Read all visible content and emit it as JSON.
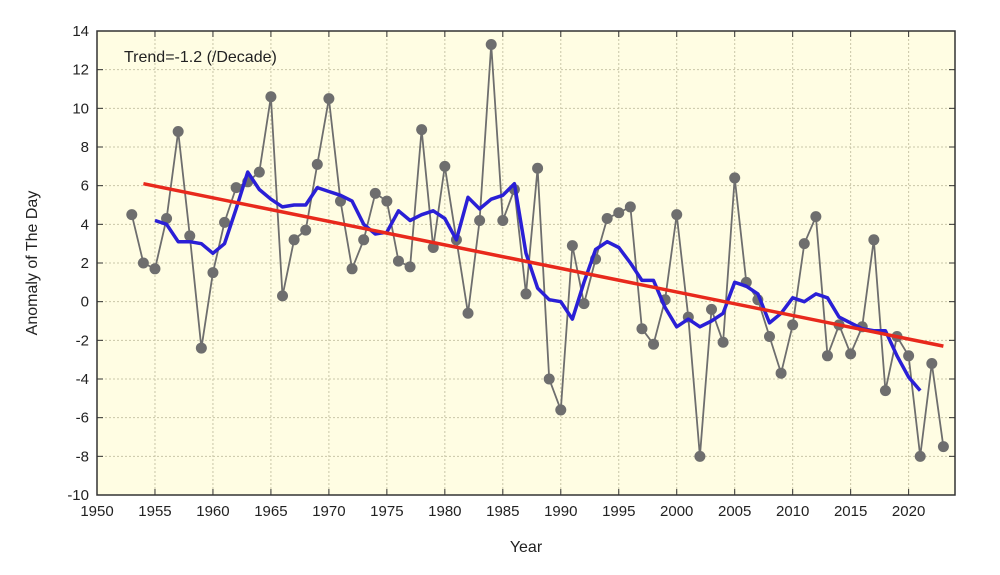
{
  "chart_data": {
    "type": "line",
    "title": "",
    "annotation": "Trend=-1.2 (/Decade)",
    "xlabel": "Year",
    "ylabel": "Anomaly of The Day",
    "xlim": [
      1950,
      2024
    ],
    "ylim": [
      -10,
      14
    ],
    "xticks": [
      1950,
      1955,
      1960,
      1965,
      1970,
      1975,
      1980,
      1985,
      1990,
      1995,
      2000,
      2005,
      2010,
      2015,
      2020
    ],
    "yticks": [
      -10,
      -8,
      -6,
      -4,
      -2,
      0,
      2,
      4,
      6,
      8,
      10,
      12,
      14
    ],
    "grid": true,
    "background": "#fffde3",
    "series": [
      {
        "kind": "markers-line",
        "color": "#6e6e6e",
        "x": [
          1953,
          1954,
          1955,
          1956,
          1957,
          1958,
          1959,
          1960,
          1961,
          1962,
          1963,
          1964,
          1965,
          1966,
          1967,
          1968,
          1969,
          1970,
          1971,
          1972,
          1973,
          1974,
          1975,
          1976,
          1977,
          1978,
          1979,
          1980,
          1981,
          1982,
          1983,
          1984,
          1985,
          1986,
          1987,
          1988,
          1989,
          1990,
          1991,
          1992,
          1993,
          1994,
          1995,
          1996,
          1997,
          1998,
          1999,
          2000,
          2001,
          2002,
          2003,
          2004,
          2005,
          2006,
          2007,
          2008,
          2009,
          2010,
          2011,
          2012,
          2013,
          2014,
          2015,
          2016,
          2017,
          2018,
          2019,
          2020,
          2021,
          2022,
          2023
        ],
        "y": [
          4.5,
          2.0,
          1.7,
          4.3,
          8.8,
          3.4,
          -2.4,
          1.5,
          4.1,
          5.9,
          6.2,
          6.7,
          10.6,
          0.3,
          3.2,
          3.7,
          7.1,
          10.5,
          5.2,
          1.7,
          3.2,
          5.6,
          5.2,
          2.1,
          1.8,
          8.9,
          2.8,
          7.0,
          3.2,
          -0.6,
          4.2,
          13.3,
          4.2,
          5.8,
          0.4,
          6.9,
          -4.0,
          -5.6,
          2.9,
          -0.1,
          2.2,
          4.3,
          4.6,
          4.9,
          -1.4,
          -2.2,
          0.1,
          4.5,
          -0.8,
          -8.0,
          -0.4,
          -2.1,
          6.4,
          1.0,
          0.1,
          -1.8,
          -3.7,
          -1.2,
          3.0,
          4.4,
          -2.8,
          -1.2,
          -2.7,
          -1.3,
          3.2,
          -4.6,
          -1.8,
          -2.8,
          -8.0,
          -3.2,
          -7.5
        ]
      },
      {
        "kind": "smoothed-line",
        "color": "#2a1fd6",
        "x": [
          1955,
          1956,
          1957,
          1958,
          1959,
          1960,
          1961,
          1962,
          1963,
          1964,
          1965,
          1966,
          1967,
          1968,
          1969,
          1970,
          1971,
          1972,
          1973,
          1974,
          1975,
          1976,
          1977,
          1978,
          1979,
          1980,
          1981,
          1982,
          1983,
          1984,
          1985,
          1986,
          1987,
          1988,
          1989,
          1990,
          1991,
          1992,
          1993,
          1994,
          1995,
          1996,
          1997,
          1998,
          1999,
          2000,
          2001,
          2002,
          2003,
          2004,
          2005,
          2006,
          2007,
          2008,
          2009,
          2010,
          2011,
          2012,
          2013,
          2014,
          2015,
          2016,
          2017,
          2018,
          2019,
          2020,
          2021
        ],
        "y": [
          4.2,
          4.0,
          3.1,
          3.1,
          3.0,
          2.5,
          3.0,
          4.8,
          6.7,
          5.8,
          5.3,
          4.9,
          5.0,
          5.0,
          5.9,
          5.7,
          5.5,
          5.2,
          4.0,
          3.5,
          3.6,
          4.7,
          4.2,
          4.5,
          4.7,
          4.3,
          3.2,
          5.4,
          4.8,
          5.3,
          5.5,
          6.1,
          2.5,
          0.7,
          0.1,
          0.0,
          -0.9,
          1.0,
          2.7,
          3.1,
          2.8,
          2.0,
          1.1,
          1.1,
          -0.3,
          -1.3,
          -0.9,
          -1.3,
          -1.0,
          -0.6,
          1.0,
          0.8,
          0.4,
          -1.1,
          -0.6,
          0.2,
          0.0,
          0.4,
          0.2,
          -0.8,
          -1.1,
          -1.4,
          -1.5,
          -1.5,
          -2.8,
          -3.9,
          -4.6
        ]
      },
      {
        "kind": "trend-line",
        "color": "#e8291c",
        "x": [
          1954,
          2023
        ],
        "y": [
          6.1,
          -2.3
        ]
      }
    ]
  }
}
